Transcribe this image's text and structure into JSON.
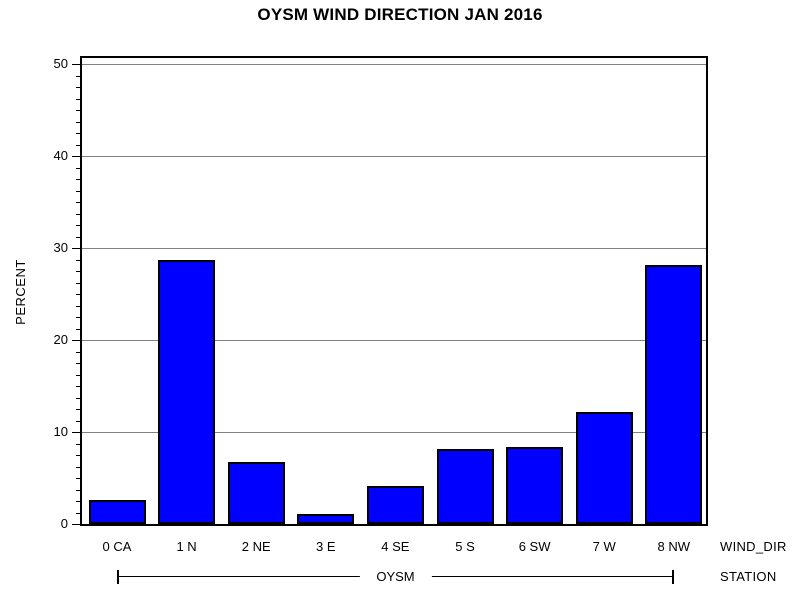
{
  "title": "OYSM WIND DIRECTION JAN 2016",
  "chart_data": {
    "type": "bar",
    "title": "OYSM WIND DIRECTION JAN 2016",
    "categories": [
      "0 CA",
      "1 N",
      "2 NE",
      "3 E",
      "4 SE",
      "5 S",
      "6 SW",
      "7 W",
      "8 NW"
    ],
    "values": [
      2.6,
      28.7,
      6.7,
      1.1,
      4.1,
      8.1,
      8.4,
      12.2,
      28.2
    ],
    "xlabel": "WIND_DIR",
    "ylabel": "PERCENT",
    "group_label": "OYSM",
    "group_axis_label": "STATION",
    "ylim": [
      0,
      50
    ],
    "yticks": [
      0,
      10,
      20,
      30,
      40,
      50
    ],
    "minor_ticks_between_majors": 7,
    "grid": true,
    "legend_position": "none",
    "bar_color": "#0000FF",
    "bar_border_color": "#000000",
    "grid_color": "#808080",
    "axis_color": "#000000",
    "background_color": "#FFFFFF"
  }
}
